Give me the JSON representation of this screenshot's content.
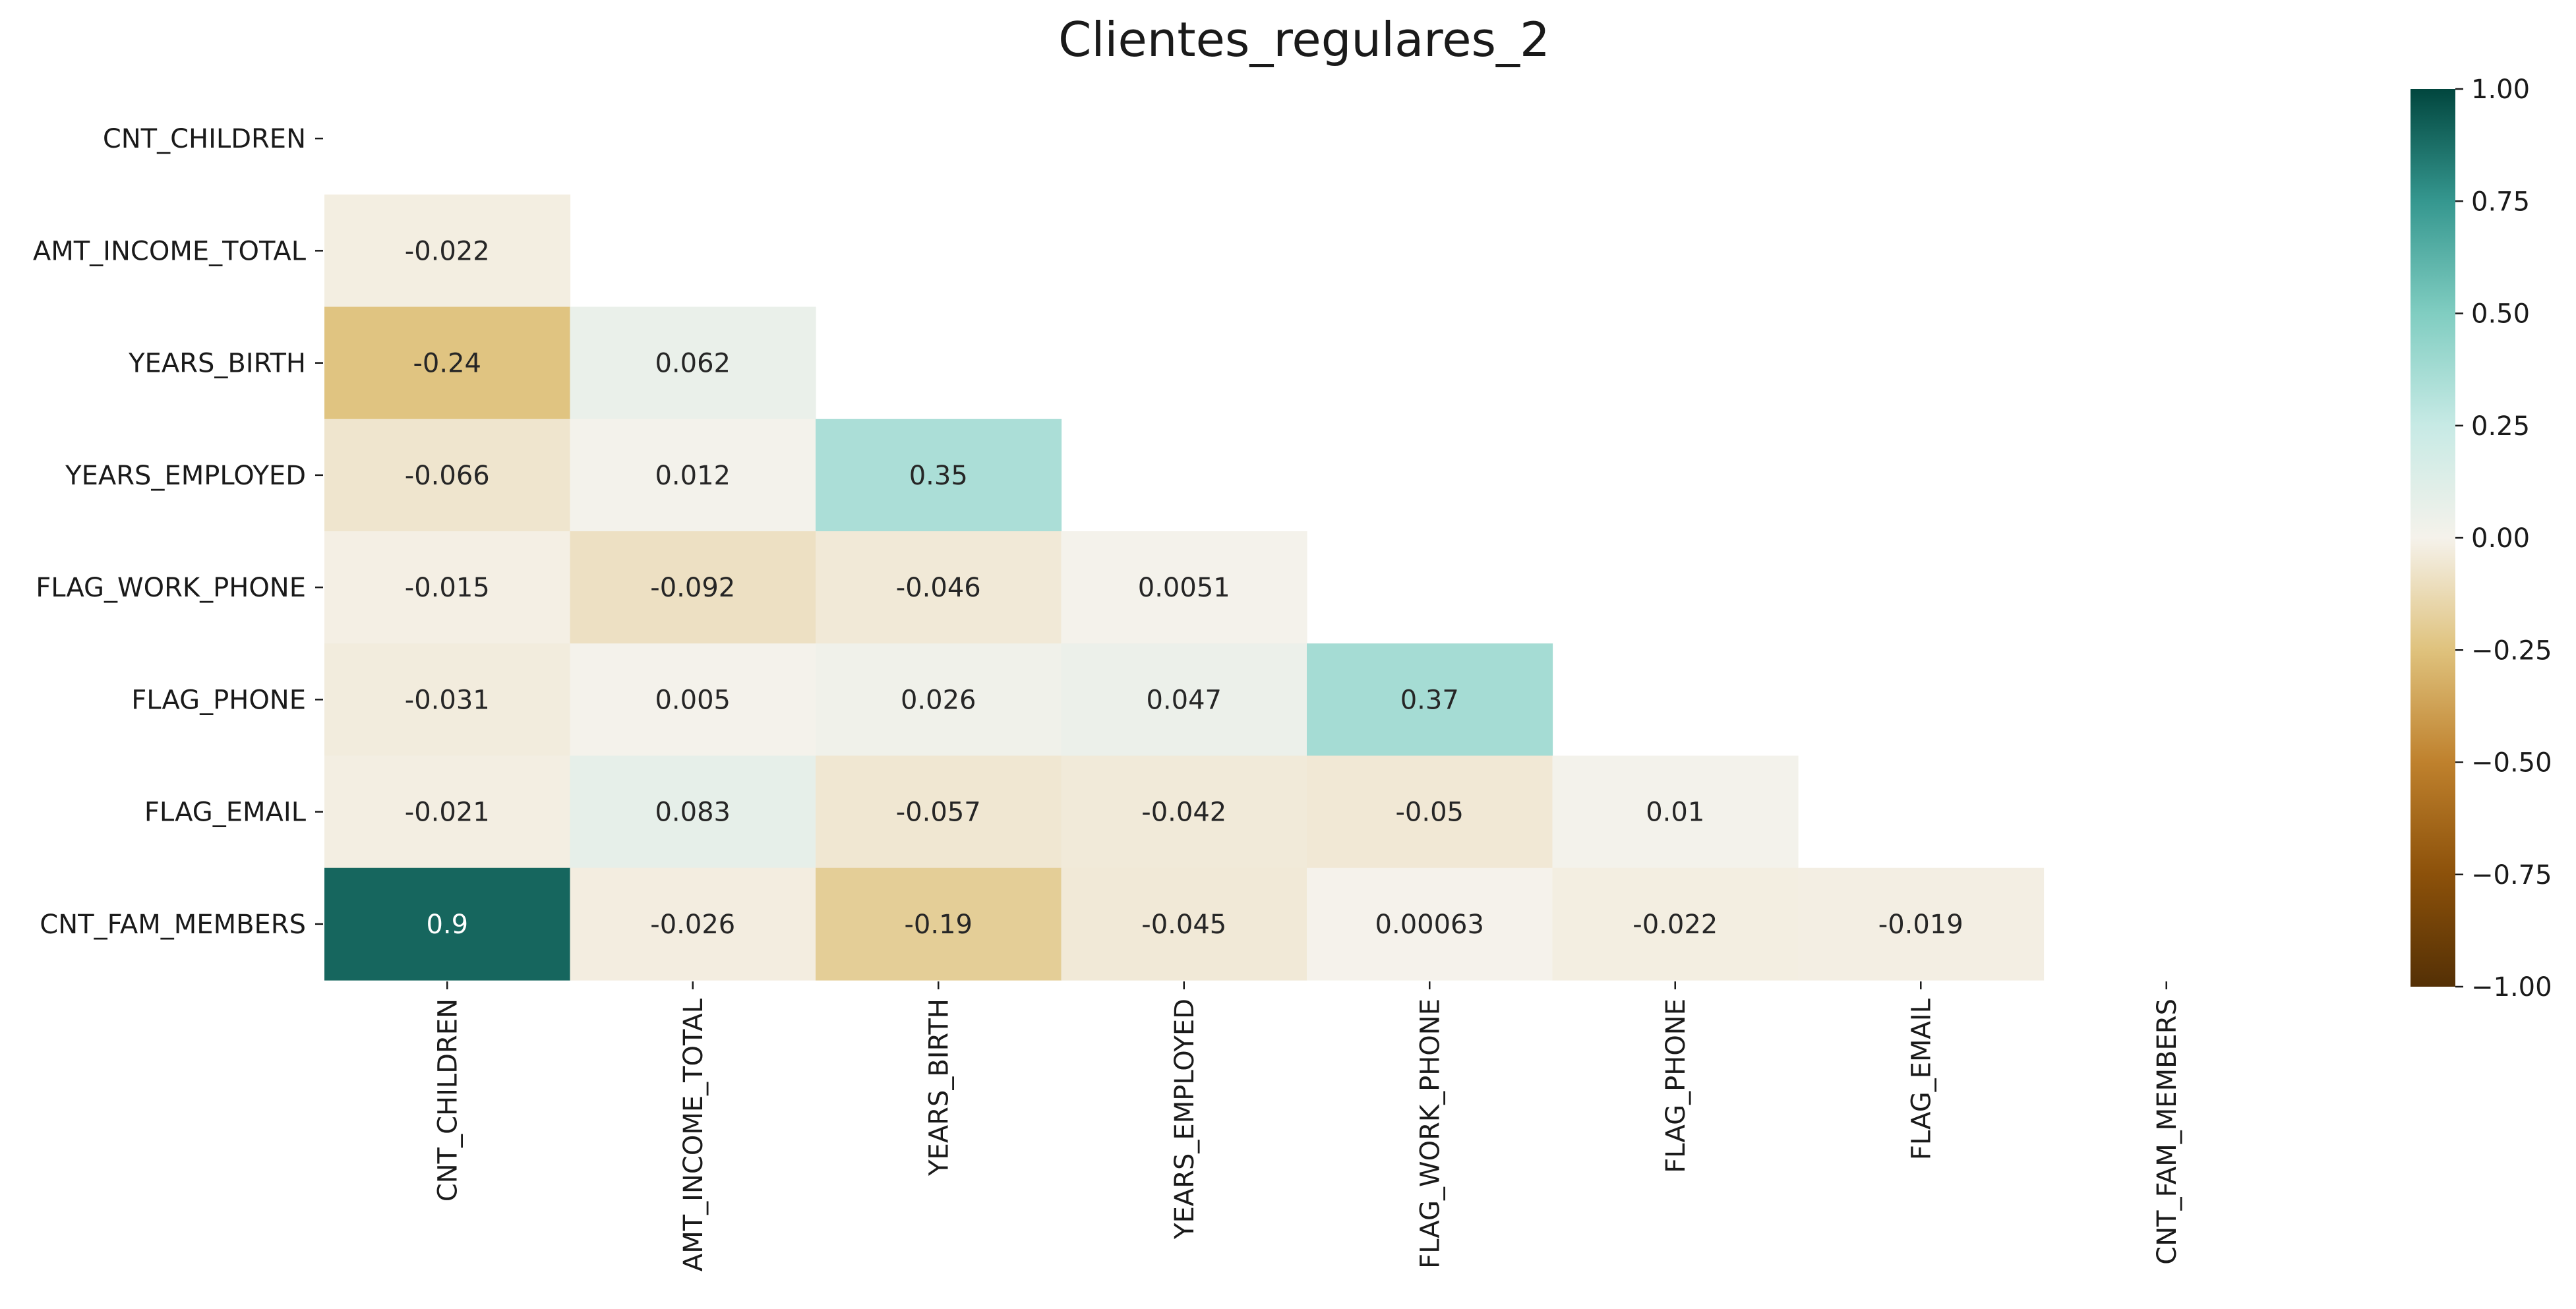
{
  "chart_data": {
    "type": "heatmap",
    "title": "Clientes_regulares_2",
    "variables": [
      "CNT_CHILDREN",
      "AMT_INCOME_TOTAL",
      "YEARS_BIRTH",
      "YEARS_EMPLOYED",
      "FLAG_WORK_PHONE",
      "FLAG_PHONE",
      "FLAG_EMAIL",
      "CNT_FAM_MEMBERS"
    ],
    "mask": "upper-triangle-including-diagonal",
    "matrix": [
      [
        null,
        null,
        null,
        null,
        null,
        null,
        null,
        null
      ],
      [
        -0.022,
        null,
        null,
        null,
        null,
        null,
        null,
        null
      ],
      [
        -0.24,
        0.062,
        null,
        null,
        null,
        null,
        null,
        null
      ],
      [
        -0.066,
        0.012,
        0.35,
        null,
        null,
        null,
        null,
        null
      ],
      [
        -0.015,
        -0.092,
        -0.046,
        0.0051,
        null,
        null,
        null,
        null
      ],
      [
        -0.031,
        0.005,
        0.026,
        0.047,
        0.37,
        null,
        null,
        null
      ],
      [
        -0.021,
        0.083,
        -0.057,
        -0.042,
        -0.05,
        0.01,
        null,
        null
      ],
      [
        0.9,
        -0.026,
        -0.19,
        -0.045,
        0.00063,
        -0.022,
        -0.019,
        null
      ]
    ],
    "labels": [
      [
        null,
        null,
        null,
        null,
        null,
        null,
        null,
        null
      ],
      [
        "-0.022",
        null,
        null,
        null,
        null,
        null,
        null,
        null
      ],
      [
        "-0.24",
        "0.062",
        null,
        null,
        null,
        null,
        null,
        null
      ],
      [
        "-0.066",
        "0.012",
        "0.35",
        null,
        null,
        null,
        null,
        null
      ],
      [
        "-0.015",
        "-0.092",
        "-0.046",
        "0.0051",
        null,
        null,
        null,
        null
      ],
      [
        "-0.031",
        "0.005",
        "0.026",
        "0.047",
        "0.37",
        null,
        null,
        null
      ],
      [
        "-0.021",
        "0.083",
        "-0.057",
        "-0.042",
        "-0.05",
        "0.01",
        null,
        null
      ],
      [
        "0.9",
        "-0.026",
        "-0.19",
        "-0.045",
        "0.00063",
        "-0.022",
        "-0.019",
        null
      ]
    ],
    "colormap": "BrBG",
    "vmin": -1,
    "vmax": 1,
    "colorbar_ticks": [
      "1.00",
      "0.75",
      "0.50",
      "0.25",
      "0.00",
      "−0.25",
      "−0.50",
      "−0.75",
      "−1.00"
    ],
    "colorbar_tick_values": [
      1,
      0.75,
      0.5,
      0.25,
      0,
      -0.25,
      -0.5,
      -0.75,
      -1
    ],
    "colormap_stops": [
      {
        "v": -1.0,
        "color": "#543005"
      },
      {
        "v": -0.75,
        "color": "#8c510a"
      },
      {
        "v": -0.5,
        "color": "#bf812d"
      },
      {
        "v": -0.25,
        "color": "#dfc27d"
      },
      {
        "v": 0.0,
        "color": "#f5f2eb"
      },
      {
        "v": 0.25,
        "color": "#c7eae5"
      },
      {
        "v": 0.5,
        "color": "#80cdc1"
      },
      {
        "v": 0.75,
        "color": "#35978f"
      },
      {
        "v": 1.0,
        "color": "#01463e"
      }
    ]
  }
}
